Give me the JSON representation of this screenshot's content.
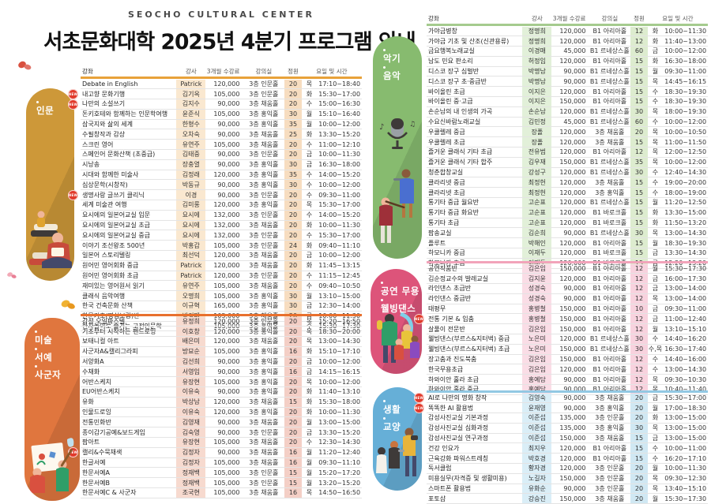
{
  "header": {
    "brand": "SEOCHO CULTURAL CENTER",
    "title": "서초문화대학 2025년 4분기 프로그램 안내"
  },
  "table_columns": {
    "course": "강좌",
    "teacher": "강사",
    "fee": "3개월 수강료",
    "room": "강의실",
    "capacity": "정원",
    "schedule": "요일 및 시간"
  },
  "row_fields": [
    "course",
    "teacher",
    "fee",
    "room",
    "capacity",
    "day",
    "time",
    "is_new"
  ],
  "badges": {
    "new_label": "NEW",
    "new_color": "#e13a2b"
  },
  "sections": [
    {
      "id": "humanities",
      "pill_lines": [
        "인문"
      ],
      "accent": "#cd9839",
      "bar_color": "#e8a23a",
      "teacher_tint": "#fae8d0",
      "capacity_tint": "#f7ddc0",
      "show_column_header": true,
      "rows": [
        [
          "Debate in English",
          "Patrick",
          "120,000",
          "3층 인문홀",
          "20",
          "목",
          "17:10~18:40",
          false
        ],
        [
          "내고향 문화기행",
          "김기옥",
          "105,000",
          "3층 인문홀",
          "20",
          "화",
          "15:30~17:00",
          true
        ],
        [
          "나만의 소설쓰기",
          "김지수",
          "90,000",
          "3층 채움홀",
          "20",
          "수",
          "15:00~16:30",
          true
        ],
        [
          "돈키호테와 함께하는 인문학여행",
          "윤준식",
          "105,000",
          "3층 홍익홀",
          "30",
          "월",
          "15:10~16:40",
          false
        ],
        [
          "삼국지와 삶의 세계",
          "한형수",
          "90,000",
          "3층 홍익홀",
          "35",
          "월",
          "10:00~12:00",
          false
        ],
        [
          "수필창작과 감상",
          "오차숙",
          "90,000",
          "3층 채움홀",
          "25",
          "화",
          "13:30~15:20",
          false
        ],
        [
          "스크린 영어",
          "유연주",
          "105,000",
          "3층 채움홀",
          "20",
          "수",
          "11:00~12:10",
          false
        ],
        [
          "스페인어 문화산책 (초중급)",
          "김태중",
          "90,000",
          "3층 인문홀",
          "20",
          "금",
          "10:00~11:30",
          false
        ],
        [
          "시낭송",
          "장충열",
          "90,000",
          "3층 홍익홀",
          "30",
          "금",
          "16:30~18:00",
          false
        ],
        [
          "시대와 함께한 미술사",
          "김정래",
          "120,000",
          "3층 홍익홀",
          "35",
          "수",
          "14:00~15:20",
          false
        ],
        [
          "심상문학(시창작)",
          "박동규",
          "90,000",
          "3층 홍익홀",
          "30",
          "수",
          "10:00~12:00",
          false
        ],
        [
          "생명사랑 글쓰기 클리닉",
          "이경",
          "90,000",
          "3층 인문홀",
          "20",
          "수",
          "09:30~11:00",
          true
        ],
        [
          "세계 미술관 여행",
          "김미롱",
          "120,000",
          "3층 홍익홀",
          "20",
          "목",
          "15:30~17:00",
          false
        ],
        [
          "요시에의 일본어교실 입문",
          "요시에",
          "132,000",
          "3층 인문홀",
          "20",
          "수",
          "14:00~15:20",
          false
        ],
        [
          "요시에의 일본어교실 초급",
          "요시에",
          "132,000",
          "3층 채움홀",
          "20",
          "화",
          "10:00~11:30",
          false
        ],
        [
          "요시에의 일본어교실 중급",
          "요시에",
          "132,000",
          "3층 인문홀",
          "20",
          "수",
          "15:30~17:00",
          false
        ],
        [
          "이야기 조선왕조 500년",
          "박홍갑",
          "105,000",
          "3층 인문홀",
          "24",
          "화",
          "09:40~11:10",
          false
        ],
        [
          "일본어 스토리텔링",
          "최선덕",
          "120,000",
          "3층 채움홀",
          "20",
          "금",
          "10:00~12:00",
          false
        ],
        [
          "원어민 영어회화 중급",
          "Patrick",
          "120,000",
          "3층 채움홀",
          "20",
          "화",
          "11:45~13:15",
          false
        ],
        [
          "원어민 영어회화 초급",
          "Patrick",
          "120,000",
          "3층 인문홀",
          "20",
          "수",
          "11:15~12:45",
          false
        ],
        [
          "재미있는 영어원서 읽기",
          "유연주",
          "105,000",
          "3층 채움홀",
          "20",
          "수",
          "09:40~10:50",
          false
        ],
        [
          "클래식 음악여행",
          "오명희",
          "105,000",
          "3층 홍익홀",
          "30",
          "월",
          "13:10~15:00",
          false
        ],
        [
          "한국 건축문화 산책",
          "이규혁",
          "165,000",
          "3층 홍익홀",
          "30",
          "금",
          "12:30~14:00",
          false
        ],
        [
          "한문기초(명심보감)반",
          "박경매",
          "105,000",
          "3층 채움홀",
          "20",
          "금",
          "10:00~11:30",
          false
        ],
        [
          "한자놀이로 즐기는 고전인문학",
          "이강렬",
          "105,000",
          "3층 홍익홀",
          "30",
          "수",
          "15:30~17:30",
          false
        ]
      ]
    },
    {
      "id": "art",
      "pill_lines": [
        "미술",
        "서예",
        "사군자"
      ],
      "accent": "#e0763e",
      "bar_color": "#e8702e",
      "teacher_tint": "#f7dacf",
      "capacity_tint": "#f4cfc6",
      "show_column_header": false,
      "rows": [
        [
          "감성 오일파스텔",
          "유정희",
          "120,000",
          "3층 인문홀",
          "20",
          "목",
          "15:20~16:50",
          false
        ],
        [
          "기초부터 시작하는 펜드로잉",
          "이호창",
          "120,000",
          "3층 홍익홀",
          "20",
          "목",
          "18:30~20:00",
          false
        ],
        [
          "보태니컬 아트",
          "배은미",
          "120,000",
          "3층 채움홀",
          "20",
          "목",
          "13:00~14:30",
          false
        ],
        [
          "사군자A&캘리그라피",
          "방묘순",
          "105,000",
          "3층 홍익홀",
          "16",
          "화",
          "15:10~17:10",
          false
        ],
        [
          "서양화A",
          "김선희",
          "90,000",
          "3층 홍익홀",
          "20",
          "금",
          "10:00~12:00",
          false
        ],
        [
          "수채화",
          "서영임",
          "90,000",
          "3층 홍익홀",
          "16",
          "금",
          "14:15~16:15",
          false
        ],
        [
          "어반스케치",
          "유장현",
          "105,000",
          "3층 홍익홀",
          "20",
          "목",
          "10:00~12:00",
          false
        ],
        [
          "EU어반스케치",
          "이유숙",
          "90,000",
          "3층 홍익홀",
          "20",
          "화",
          "11:40~13:10",
          false
        ],
        [
          "유화",
          "박상남",
          "120,000",
          "3층 채움홀",
          "15",
          "화",
          "15:30~18:00",
          false
        ],
        [
          "인물드로잉",
          "이유숙",
          "120,000",
          "3층 홍익홀",
          "20",
          "화",
          "10:00~11:30",
          false
        ],
        [
          "전통민화반",
          "김영재",
          "90,000",
          "3층 채움홀",
          "20",
          "월",
          "13:00~15:00",
          false
        ],
        [
          "종이감기공예&보드게임",
          "김숙영",
          "90,000",
          "3층 인문홀",
          "20",
          "금",
          "13:30~15:20",
          false
        ],
        [
          "팝아트",
          "유장현",
          "105,000",
          "3층 채움홀",
          "20",
          "수",
          "12:30~14:30",
          false
        ],
        [
          "캘리&수묵채색",
          "김정자",
          "90,000",
          "3층 채움홀",
          "16",
          "월",
          "11:20~12:40",
          true
        ],
        [
          "한글서예",
          "김정자",
          "105,000",
          "3층 채움홀",
          "16",
          "월",
          "09:30~11:10",
          false
        ],
        [
          "한문서예A",
          "정재백",
          "105,000",
          "3층 인문홀",
          "15",
          "월",
          "15:20~17:20",
          false
        ],
        [
          "한문서예B",
          "정재백",
          "105,000",
          "3층 인문홀",
          "15",
          "월",
          "13:20~15:20",
          false
        ],
        [
          "한문서예C & 사군자",
          "조국현",
          "105,000",
          "3층 채움홀",
          "16",
          "목",
          "14:50~16:50",
          false
        ]
      ]
    },
    {
      "id": "music",
      "pill_lines": [
        "악기",
        "음악"
      ],
      "accent": "#87bb6f",
      "bar_color": "#a5cb8e",
      "teacher_tint": "#e2f0d9",
      "capacity_tint": "#ddeccf",
      "show_column_header": true,
      "rows": [
        [
          "가야금병창",
          "정명희",
          "120,000",
          "B1 아리아홀",
          "12",
          "화",
          "10:00~11:30",
          false
        ],
        [
          "가야금 기초 및 산조(신관용류)",
          "정명희",
          "120,000",
          "B1 아리아홀",
          "12",
          "화",
          "11:40~13:00",
          false
        ],
        [
          "금요행복노래교실",
          "이경매",
          "45,000",
          "B1 르네상스홀",
          "60",
          "금",
          "10:00~12:00",
          false
        ],
        [
          "남도 민요 판소리",
          "허정임",
          "120,000",
          "B1 아리아홀",
          "15",
          "화",
          "16:30~18:00",
          false
        ],
        [
          "디스코 장구 심벌반",
          "박명남",
          "90,000",
          "B1 르네상스홀",
          "15",
          "월",
          "09:30~11:00",
          false
        ],
        [
          "디스코 장구 초·중급반",
          "박명남",
          "90,000",
          "B1 르네상스홀",
          "15",
          "목",
          "14:45~16:15",
          false
        ],
        [
          "바이올린 초급",
          "이지은",
          "120,000",
          "B1 아리아홀",
          "15",
          "수",
          "18:30~19:30",
          false
        ],
        [
          "바이올린 중·고급",
          "이지은",
          "150,000",
          "B1 아리아홀",
          "15",
          "수",
          "18:30~19:30",
          false
        ],
        [
          "손순남의 내 인생의 가곡",
          "손순남",
          "120,000",
          "B1 르네상스홀",
          "30",
          "목",
          "18:00~19:30",
          false
        ],
        [
          "수요신바람노래교실",
          "김민정",
          "45,000",
          "B1 르네상스홀",
          "60",
          "수",
          "10:00~12:00",
          false
        ],
        [
          "우쿨렐레 중급",
          "장폴",
          "120,000",
          "3층 채움홀",
          "20",
          "목",
          "10:00~10:50",
          false
        ],
        [
          "우쿨렐레 초급",
          "장폴",
          "120,000",
          "3층 채움홀",
          "15",
          "목",
          "11:00~11:50",
          false
        ],
        [
          "즐거운 클래식 기타 초급",
          "전유범",
          "120,000",
          "B1 아리아홀",
          "12",
          "목",
          "12:00~12:50",
          false
        ],
        [
          "즐거운 클래식 기타 합주",
          "김우재",
          "150,000",
          "B1 르네상스홀",
          "35",
          "목",
          "10:00~12:00",
          false
        ],
        [
          "청춘합창교실",
          "강성구",
          "120,000",
          "B1 르네상스홀",
          "30",
          "수",
          "12:40~14:30",
          false
        ],
        [
          "클라리넷 중급",
          "최정헌",
          "120,000",
          "3층 채움홀",
          "15",
          "수",
          "19:00~20:00",
          false
        ],
        [
          "클라리넷 초급",
          "최정헌",
          "120,000",
          "3층 홍익홀",
          "15",
          "수",
          "18:00~19:00",
          false
        ],
        [
          "통기타 중급 월요반",
          "고순표",
          "120,000",
          "B1 르네상스홀",
          "15",
          "월",
          "11:20~12:50",
          false
        ],
        [
          "통기타 중급 화요반",
          "고순표",
          "120,000",
          "B1 바로크홀",
          "15",
          "화",
          "13:30~15:00",
          false
        ],
        [
          "통기타 초급",
          "고순표",
          "120,000",
          "B1 바로크홀",
          "15",
          "화",
          "11:50~13:20",
          false
        ],
        [
          "팝송교실",
          "김순희",
          "90,000",
          "B1 르네상스홀",
          "30",
          "목",
          "13:00~14:30",
          false
        ],
        [
          "플루트",
          "박해인",
          "120,000",
          "B1 아리아홀",
          "15",
          "월",
          "18:30~19:30",
          false
        ],
        [
          "하모니카 중급",
          "이재두",
          "120,000",
          "B1 바로크홀",
          "15",
          "금",
          "13:30~14:30",
          false
        ],
        [
          "하모니카 초급",
          "이재두",
          "120,000",
          "B1 바로크홀",
          "15",
          "금",
          "12:20~13:20",
          false
        ]
      ]
    },
    {
      "id": "dance",
      "pill_lines": [
        "공연 무용",
        "웰빙댄스"
      ],
      "accent": "#dd547a",
      "bar_color": "#f2a3ba",
      "teacher_tint": "#fadde6",
      "capacity_tint": "#f8d2de",
      "show_column_header": false,
      "rows": [
        [
          "공연작품반",
          "김은임",
          "150,000",
          "B1 아리아홀",
          "12",
          "월",
          "15:30~17:30",
          false
        ],
        [
          "김순정교수의 발레교실",
          "김지윤",
          "120,000",
          "B1 아리아홀",
          "12",
          "금",
          "16:00~17:30",
          false
        ],
        [
          "라인댄스 초급반",
          "성경숙",
          "90,000",
          "B1 아리아홀",
          "12",
          "금",
          "13:00~14:00",
          false
        ],
        [
          "라인댄스 중급반",
          "성경숙",
          "90,000",
          "B1 아리아홀",
          "12",
          "목",
          "13:00~14:00",
          false
        ],
        [
          "태평무",
          "홍병철",
          "150,000",
          "B1 아리아홀",
          "10",
          "금",
          "09:30~11:00",
          false
        ],
        [
          "전통 기본 & 입춤",
          "홍병철",
          "150,000",
          "B1 아리아홀",
          "12",
          "금",
          "11:00~12:40",
          true
        ],
        [
          "살풀이 전문반",
          "김은임",
          "150,000",
          "B1 아리아홀",
          "12",
          "월",
          "13:10~15:10",
          false
        ],
        [
          "웰빙댄스(부르스&지터벅) 중급",
          "노은미",
          "120,000",
          "B1 르네상스홀",
          "30",
          "수",
          "14:40~16:20",
          false
        ],
        [
          "웰빙댄스(부르스&지터벅) 초급",
          "노은미",
          "150,000",
          "B1 르네상스홀",
          "30",
          "수,목",
          "16:30~17:40",
          false
        ],
        [
          "장고춤과 진도북춤",
          "김은임",
          "150,000",
          "B1 아리아홀",
          "12",
          "수",
          "14:40~16:00",
          false
        ],
        [
          "한국무용초급",
          "김은임",
          "120,000",
          "B1 아리아홀",
          "12",
          "수",
          "13:00~14:30",
          false
        ],
        [
          "하와이안 훌라 초급",
          "홍예담",
          "90,000",
          "B1 아리아홀",
          "12",
          "목",
          "09:30~10:30",
          false
        ],
        [
          "하와이안 훌라 중급",
          "홍예담",
          "90,000",
          "B1 아리아홀",
          "12",
          "목",
          "10:40~11:40",
          false
        ]
      ]
    },
    {
      "id": "life",
      "pill_lines": [
        "생활",
        "교양"
      ],
      "accent": "#66afd7",
      "bar_color": "#92c8e3",
      "teacher_tint": "#daeef7",
      "capacity_tint": "#d0e8f3",
      "show_column_header": false,
      "rows": [
        [
          "AI로 나만의 명화 창작",
          "김영숙",
          "90,000",
          "3층 채움홀",
          "20",
          "금",
          "15:30~17:00",
          true
        ],
        [
          "똑똑한 AI 활용법",
          "윤재영",
          "90,000",
          "3층 홍익홀",
          "20",
          "월",
          "17:00~18:30",
          true
        ],
        [
          "감성사진교실 기본과정",
          "이준섭",
          "135,000",
          "3층 인문홀",
          "20",
          "화",
          "13:00~15:00",
          false
        ],
        [
          "감성사진교실 심화과정",
          "이준섭",
          "135,000",
          "3층 홍익홀",
          "30",
          "목",
          "13:00~15:00",
          false
        ],
        [
          "감성사진교실 연구과정",
          "이준섭",
          "150,000",
          "3층 채움홀",
          "15",
          "금",
          "13:00~15:00",
          false
        ],
        [
          "건강 인요가",
          "최지우",
          "120,000",
          "B1 아리아홀",
          "15",
          "수",
          "10:00~11:00",
          false
        ],
        [
          "근육강화 파워스트레칭",
          "박호경",
          "120,000",
          "B1 아리아홀",
          "15",
          "수",
          "16:20~17:10",
          false
        ],
        [
          "독서클럽",
          "황자경",
          "120,000",
          "3층 인문홀",
          "20",
          "월",
          "10:00~11:30",
          false
        ],
        [
          "미용실무(자격증 및 생활미용)",
          "노길자",
          "150,000",
          "3층 인문홀",
          "20",
          "목",
          "09:30~12:30",
          false
        ],
        [
          "스마트폰 활용법",
          "유화순",
          "90,000",
          "3층 인문홀",
          "20",
          "목",
          "13:40~15:10",
          false
        ],
        [
          "포토샵",
          "강승진",
          "150,000",
          "3층 채움홀",
          "20",
          "월",
          "15:30~17:30",
          false
        ]
      ]
    }
  ],
  "decor": {
    "butterfly_colors": [
      "#d9503f",
      "#f0b233",
      "#f2a9b6"
    ]
  }
}
